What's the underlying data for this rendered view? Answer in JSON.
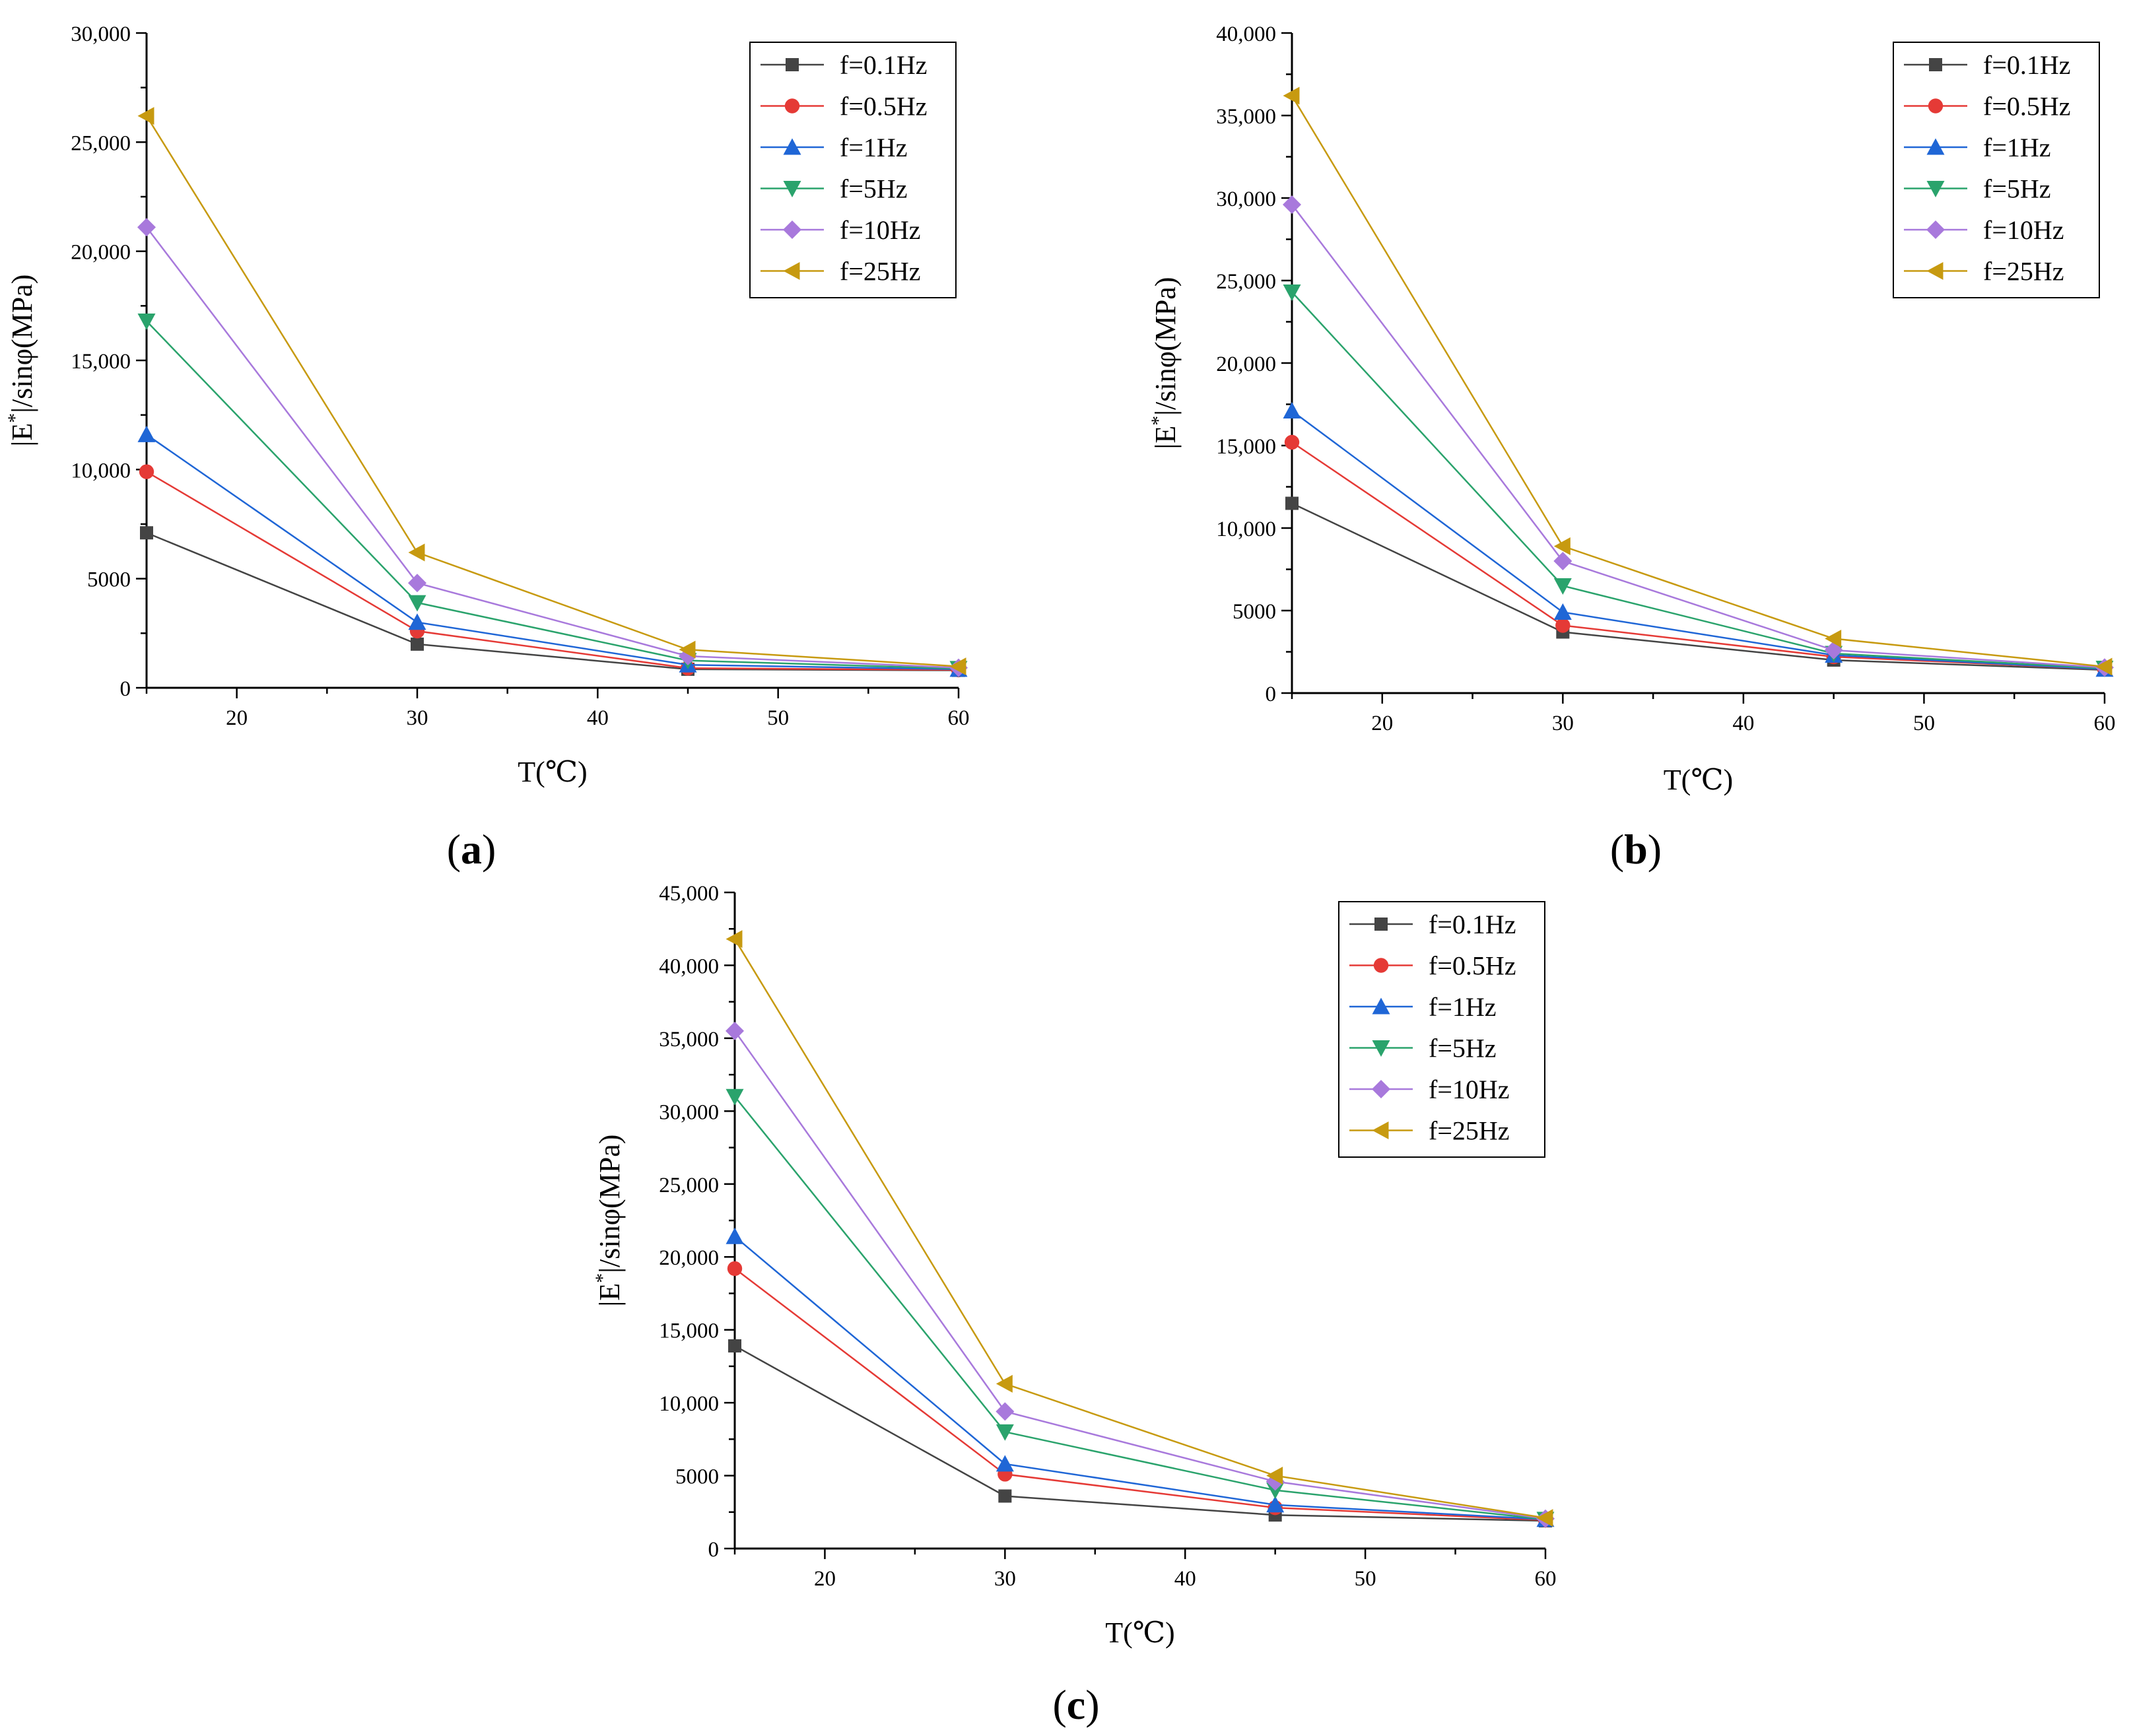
{
  "figure": {
    "series_style": [
      {
        "color": "#444444",
        "marker": "square"
      },
      {
        "color": "#e53a36",
        "marker": "circle"
      },
      {
        "color": "#1f66d6",
        "marker": "triangle-up"
      },
      {
        "color": "#2aa36c",
        "marker": "triangle-down"
      },
      {
        "color": "#a879dc",
        "marker": "diamond"
      },
      {
        "color": "#c79a10",
        "marker": "triangle-left"
      }
    ]
  },
  "chart_data": [
    {
      "id": "a",
      "panel_label_open": "(",
      "panel_label_letter": "a",
      "panel_label_close": ")",
      "type": "line",
      "xlabel": "T(℃)",
      "ylabel_pre": "|E",
      "ylabel_sup": "*",
      "ylabel_post": "|/sinφ(MPa)",
      "xlim": [
        15,
        60
      ],
      "ylim": [
        0,
        30000
      ],
      "xticks": [
        20,
        30,
        40,
        50,
        60
      ],
      "xtick_labels": [
        "20",
        "30",
        "40",
        "50",
        "60"
      ],
      "yticks": [
        0,
        5000,
        10000,
        15000,
        20000,
        25000,
        30000
      ],
      "ytick_labels": [
        "0",
        "5000",
        "10,000",
        "15,000",
        "20,000",
        "25,000",
        "30,000"
      ],
      "legend_position": "top-right",
      "x": [
        15,
        30,
        45,
        60
      ],
      "series": [
        {
          "name": "f=0.1Hz",
          "values": [
            7100,
            2000,
            850,
            800
          ]
        },
        {
          "name": "f=0.5Hz",
          "values": [
            9900,
            2600,
            900,
            820
          ]
        },
        {
          "name": "f=1Hz",
          "values": [
            11600,
            3000,
            1050,
            850
          ]
        },
        {
          "name": "f=5Hz",
          "values": [
            16800,
            3900,
            1250,
            880
          ]
        },
        {
          "name": "f=10Hz",
          "values": [
            21100,
            4800,
            1450,
            920
          ]
        },
        {
          "name": "f=25Hz",
          "values": [
            26200,
            6200,
            1750,
            980
          ]
        }
      ]
    },
    {
      "id": "b",
      "panel_label_open": "(",
      "panel_label_letter": "b",
      "panel_label_close": ")",
      "type": "line",
      "xlabel": "T(℃)",
      "ylabel_pre": "|E",
      "ylabel_sup": "*",
      "ylabel_post": "|/sinφ(MPa)",
      "xlim": [
        15,
        60
      ],
      "ylim": [
        0,
        40000
      ],
      "xticks": [
        20,
        30,
        40,
        50,
        60
      ],
      "xtick_labels": [
        "20",
        "30",
        "40",
        "50",
        "60"
      ],
      "yticks": [
        0,
        5000,
        10000,
        15000,
        20000,
        25000,
        30000,
        35000,
        40000
      ],
      "ytick_labels": [
        "0",
        "5000",
        "10,000",
        "15,000",
        "20,000",
        "25,000",
        "30,000",
        "35,000",
        "40,000"
      ],
      "legend_position": "top-right",
      "x": [
        15,
        30,
        45,
        60
      ],
      "series": [
        {
          "name": "f=0.1Hz",
          "values": [
            11500,
            3700,
            2000,
            1400
          ]
        },
        {
          "name": "f=0.5Hz",
          "values": [
            15200,
            4100,
            2200,
            1450
          ]
        },
        {
          "name": "f=1Hz",
          "values": [
            17100,
            4900,
            2300,
            1450
          ]
        },
        {
          "name": "f=5Hz",
          "values": [
            24300,
            6500,
            2400,
            1500
          ]
        },
        {
          "name": "f=10Hz",
          "values": [
            29600,
            8000,
            2600,
            1550
          ]
        },
        {
          "name": "f=25Hz",
          "values": [
            36200,
            8900,
            3300,
            1600
          ]
        }
      ]
    },
    {
      "id": "c",
      "panel_label_open": "(",
      "panel_label_letter": "c",
      "panel_label_close": ")",
      "type": "line",
      "xlabel": "T(℃)",
      "ylabel_pre": "|E",
      "ylabel_sup": "*",
      "ylabel_post": "|/sinφ(MPa)",
      "xlim": [
        15,
        60
      ],
      "ylim": [
        0,
        45000
      ],
      "xticks": [
        20,
        30,
        40,
        50,
        60
      ],
      "xtick_labels": [
        "20",
        "30",
        "40",
        "50",
        "60"
      ],
      "yticks": [
        0,
        5000,
        10000,
        15000,
        20000,
        25000,
        30000,
        35000,
        40000,
        45000
      ],
      "ytick_labels": [
        "0",
        "5000",
        "10,000",
        "15,000",
        "20,000",
        "25,000",
        "30,000",
        "35,000",
        "40,000",
        "45,000"
      ],
      "legend_position": "top-right",
      "x": [
        15,
        30,
        45,
        60
      ],
      "series": [
        {
          "name": "f=0.1Hz",
          "values": [
            13900,
            3600,
            2300,
            1900
          ]
        },
        {
          "name": "f=0.5Hz",
          "values": [
            19200,
            5100,
            2800,
            1950
          ]
        },
        {
          "name": "f=1Hz",
          "values": [
            21400,
            5800,
            3000,
            2000
          ]
        },
        {
          "name": "f=5Hz",
          "values": [
            31000,
            8000,
            4000,
            2000
          ]
        },
        {
          "name": "f=10Hz",
          "values": [
            35500,
            9400,
            4600,
            2050
          ]
        },
        {
          "name": "f=25Hz",
          "values": [
            41800,
            11300,
            5000,
            2100
          ]
        }
      ]
    }
  ]
}
